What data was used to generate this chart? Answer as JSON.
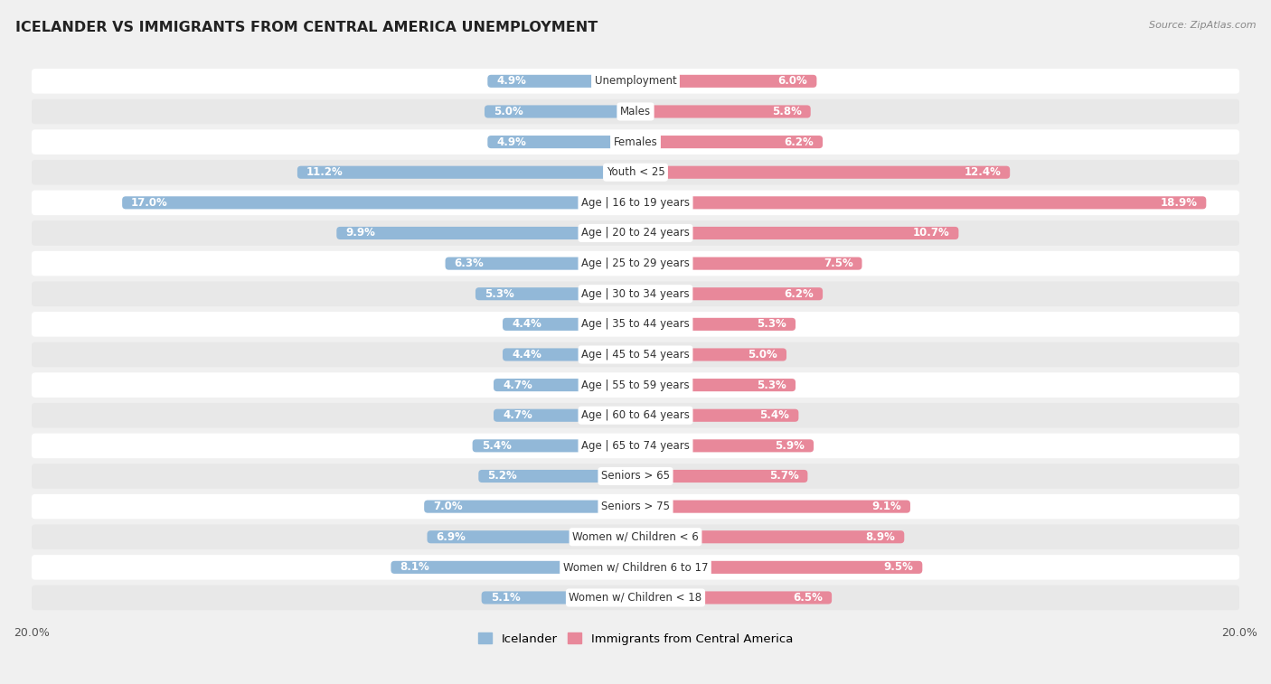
{
  "title": "ICELANDER VS IMMIGRANTS FROM CENTRAL AMERICA UNEMPLOYMENT",
  "source": "Source: ZipAtlas.com",
  "categories": [
    "Unemployment",
    "Males",
    "Females",
    "Youth < 25",
    "Age | 16 to 19 years",
    "Age | 20 to 24 years",
    "Age | 25 to 29 years",
    "Age | 30 to 34 years",
    "Age | 35 to 44 years",
    "Age | 45 to 54 years",
    "Age | 55 to 59 years",
    "Age | 60 to 64 years",
    "Age | 65 to 74 years",
    "Seniors > 65",
    "Seniors > 75",
    "Women w/ Children < 6",
    "Women w/ Children 6 to 17",
    "Women w/ Children < 18"
  ],
  "icelander": [
    4.9,
    5.0,
    4.9,
    11.2,
    17.0,
    9.9,
    6.3,
    5.3,
    4.4,
    4.4,
    4.7,
    4.7,
    5.4,
    5.2,
    7.0,
    6.9,
    8.1,
    5.1
  ],
  "immigrants": [
    6.0,
    5.8,
    6.2,
    12.4,
    18.9,
    10.7,
    7.5,
    6.2,
    5.3,
    5.0,
    5.3,
    5.4,
    5.9,
    5.7,
    9.1,
    8.9,
    9.5,
    6.5
  ],
  "icelander_color": "#92b8d8",
  "immigrants_color": "#e8889a",
  "axis_max": 20.0,
  "background_color": "#f0f0f0",
  "row_color_odd": "#ffffff",
  "row_color_even": "#e8e8e8",
  "legend_icelander": "Icelander",
  "legend_immigrants": "Immigrants from Central America",
  "center_label_bg": "#ffffff",
  "center_label_color": "#333333",
  "value_label_color_outside": "#555555",
  "value_label_color_inside": "#ffffff"
}
